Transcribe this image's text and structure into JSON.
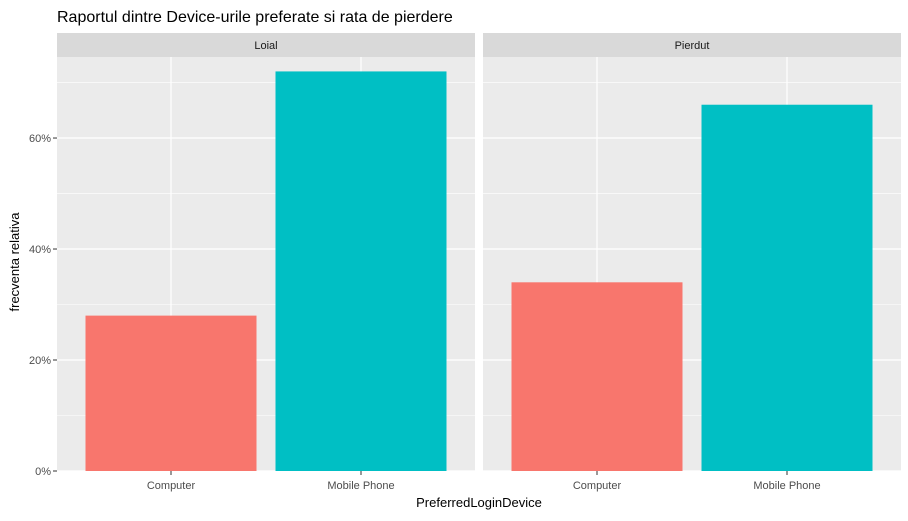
{
  "chart_data": {
    "type": "bar",
    "title": "Raportul dintre Device-urile preferate si rata de pierdere",
    "xlabel": "PreferredLoginDevice",
    "ylabel": "frecventa relativa",
    "categories": [
      "Computer",
      "Mobile Phone"
    ],
    "ylim": [
      0,
      0.746
    ],
    "yticks": [
      0,
      0.2,
      0.4,
      0.6
    ],
    "ytick_labels": [
      "0%",
      "20%",
      "40%",
      "60%"
    ],
    "grid": true,
    "legend": "none",
    "colors": {
      "Computer": "#F8766D",
      "Mobile Phone": "#00BFC4"
    },
    "facets": [
      {
        "name": "Loial",
        "values": [
          0.28,
          0.72
        ]
      },
      {
        "name": "Pierdut",
        "values": [
          0.34,
          0.66
        ]
      }
    ]
  }
}
